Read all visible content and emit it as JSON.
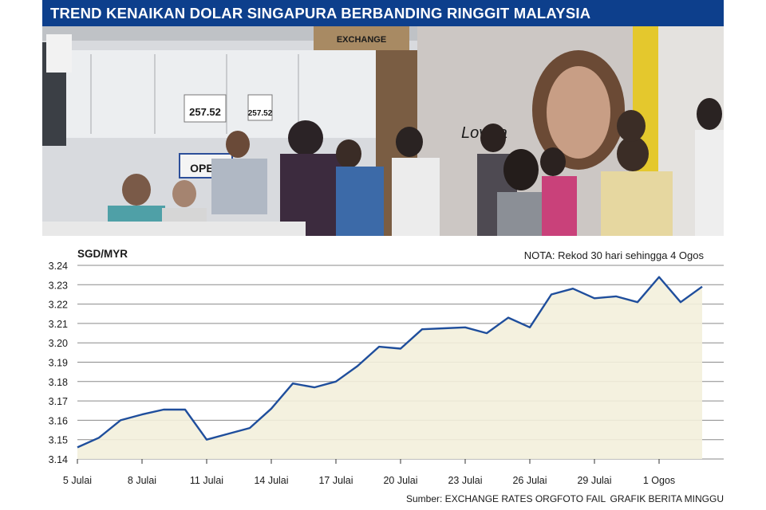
{
  "header": {
    "title": "TREND KENAIKAN DOLAR SINGAPURA BERBANDING RINGGIT MALAYSIA"
  },
  "photo": {
    "rate_sign_1": "257.52",
    "rate_sign_2": "257.52",
    "door_sign": "OPEN",
    "brand_text": "Lovisa",
    "shop_sign": "EXCHANGE"
  },
  "chart_data": {
    "type": "area",
    "title": "SGD/MYR",
    "note": "NOTA: Rekod 30 hari sehingga 4 Ogos",
    "source": "Sumber: EXCHANGE RATES ORG",
    "photo_credit": "FOTO FAIL",
    "graphic_credit": "GRAFIK BERITA MINGGU",
    "x_tick_labels": [
      "5 Julai",
      "8 Julai",
      "11 Julai",
      "14 Julai",
      "17 Julai",
      "20 Julai",
      "23 Julai",
      "26 Julai",
      "29 Julai",
      "1 Ogos"
    ],
    "y_tick_labels": [
      "3.24",
      "3.23",
      "3.22",
      "3.21",
      "3.20",
      "3.19",
      "3.18",
      "3.17",
      "3.16",
      "3.15",
      "3.14"
    ],
    "ylim": [
      3.14,
      3.24
    ],
    "grid": true,
    "colors": {
      "line": "#1f4e9c",
      "fill": "#f3efdc",
      "grid": "#8a8a8a",
      "banner": "#0d3f8c"
    },
    "dates": [
      "5 Julai",
      "6 Julai",
      "7 Julai",
      "8 Julai",
      "9 Julai",
      "10 Julai",
      "11 Julai",
      "12 Julai",
      "13 Julai",
      "14 Julai",
      "15 Julai",
      "16 Julai",
      "17 Julai",
      "18 Julai",
      "19 Julai",
      "20 Julai",
      "21 Julai",
      "22 Julai",
      "23 Julai",
      "24 Julai",
      "25 Julai",
      "26 Julai",
      "27 Julai",
      "28 Julai",
      "29 Julai",
      "30 Julai",
      "31 Julai",
      "1 Ogos",
      "2 Ogos",
      "3 Ogos",
      "4 Ogos"
    ],
    "values": [
      3.146,
      3.151,
      3.16,
      3.163,
      3.1655,
      3.1655,
      3.15,
      3.153,
      3.156,
      3.166,
      3.179,
      3.177,
      3.18,
      3.188,
      3.198,
      3.197,
      3.207,
      3.2075,
      3.208,
      3.205,
      3.213,
      3.208,
      3.225,
      3.228,
      3.223,
      3.224,
      3.221,
      3.234,
      3.221,
      3.229,
      null
    ]
  }
}
